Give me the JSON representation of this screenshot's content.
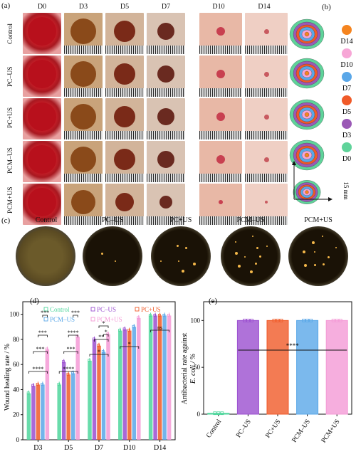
{
  "panel_labels": {
    "a": "(a)",
    "b": "(b)",
    "c": "(c)",
    "d": "(d)",
    "e": "(e)"
  },
  "days": [
    "D0",
    "D3",
    "D5",
    "D7",
    "D10",
    "D14"
  ],
  "groups": [
    "Control",
    "PC–US",
    "PC+US",
    "PCM–US",
    "PCM+US"
  ],
  "trace_legend": [
    {
      "label": "D14",
      "color": "#f5841f"
    },
    {
      "label": "D10",
      "color": "#f7a6d6"
    },
    {
      "label": "D7",
      "color": "#5aa7e8"
    },
    {
      "label": "D5",
      "color": "#f05a28"
    },
    {
      "label": "D3",
      "color": "#9b59b6"
    },
    {
      "label": "D0",
      "color": "#5fd39a"
    }
  ],
  "scale_bar": "15 mm",
  "dish_labels": [
    "Control",
    "PC–US",
    "PC+US",
    "PCM–US",
    "PCM+US"
  ],
  "colors": {
    "Control": "#4fd69c",
    "PC–US": "#9b4fd0",
    "PC+US": "#f05a28",
    "PCM–US": "#5aa7e8",
    "PCM+US": "#f49ad6"
  },
  "chart_data": [
    {
      "type": "bar",
      "ylabel": "Wound healing rate / %",
      "ylim": [
        0,
        110
      ],
      "yticks": [
        0,
        20,
        40,
        60,
        80,
        100
      ],
      "categories": [
        "D3",
        "D5",
        "D7",
        "D10",
        "D14"
      ],
      "series": [
        {
          "name": "Control",
          "values": [
            37,
            44,
            63,
            87,
            99
          ]
        },
        {
          "name": "PC–US",
          "values": [
            43,
            62,
            80,
            88,
            99
          ]
        },
        {
          "name": "PC+US",
          "values": [
            44,
            52,
            75,
            87,
            99
          ]
        },
        {
          "name": "PCM–US",
          "values": [
            44,
            53,
            70,
            90,
            99
          ]
        },
        {
          "name": "PCM+US",
          "values": [
            72,
            82,
            84,
            97,
            99
          ]
        }
      ],
      "significance": [
        "****",
        "***",
        "***",
        "***",
        "****",
        "***",
        "****",
        "***",
        "*",
        "**",
        "*",
        "*",
        "*",
        "ns"
      ],
      "legend": "top"
    },
    {
      "type": "bar",
      "ylabel": "Antibacterial rate against",
      "ylabel_line2": "E. coli / %",
      "ylim": [
        0,
        120
      ],
      "yticks": [
        0,
        50,
        100
      ],
      "categories": [
        "Control",
        "PC–US",
        "PC+US",
        "PCM–US",
        "PCM+US"
      ],
      "values": [
        1,
        100,
        100,
        100,
        100
      ],
      "significance": "****"
    }
  ]
}
